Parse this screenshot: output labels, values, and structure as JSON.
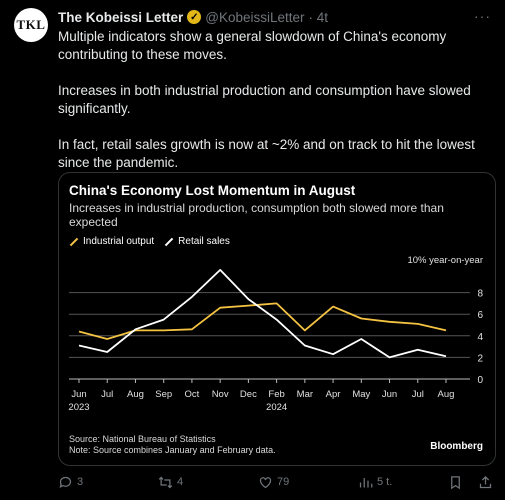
{
  "tweet": {
    "avatar_text": "TKL",
    "author_name": "The Kobeissi Letter",
    "handle": "@KobeissiLetter",
    "time": "· 4t",
    "paragraphs": [
      "Multiple indicators show a general slowdown of China's economy contributing to these moves.",
      "Increases in both industrial production and consumption have slowed significantly.",
      "In fact, retail sales growth is now at ~2% and on track to hit the lowest since the pandemic."
    ]
  },
  "card": {
    "source_line1": "Source: National Bureau of Statistics",
    "source_line2": "Note: Source combines January and February data.",
    "brand": "Bloomberg"
  },
  "chart_data": {
    "type": "line",
    "title": "China's Economy Lost Momentum in August",
    "subtitle": "Increases in industrial production, consumption both slowed more than expected",
    "unit_label": "10% year-on-year",
    "categories": [
      "Jun",
      "Jul",
      "Aug",
      "Sep",
      "Oct",
      "Nov",
      "Dec",
      "Feb",
      "Mar",
      "Apr",
      "May",
      "Jun",
      "Jul",
      "Aug"
    ],
    "x_tick_labels": [
      "Jun",
      "Jul",
      "Aug",
      "Sep",
      "Oct",
      "Nov",
      "Dec",
      "Feb",
      "Mar",
      "Apr",
      "May",
      "Jun",
      "Jul",
      "Aug"
    ],
    "year_labels": [
      {
        "index": 0,
        "label": "2023"
      },
      {
        "index": 7,
        "label": "2024"
      }
    ],
    "y_ticks": [
      "0",
      "2",
      "4",
      "6",
      "8"
    ],
    "ylim": [
      0,
      10
    ],
    "series": [
      {
        "name": "Industrial output",
        "color": "#f5c342",
        "values": [
          4.4,
          3.7,
          4.5,
          4.5,
          4.6,
          6.6,
          6.8,
          7.0,
          4.5,
          6.7,
          5.6,
          5.3,
          5.1,
          4.5
        ]
      },
      {
        "name": "Retail sales",
        "color": "#ffffff",
        "values": [
          3.1,
          2.5,
          4.6,
          5.5,
          7.6,
          10.1,
          7.4,
          5.5,
          3.1,
          2.3,
          3.7,
          2.0,
          2.7,
          2.1
        ]
      }
    ]
  },
  "actions": {
    "replies": "3",
    "reposts": "4",
    "likes": "79",
    "views": "5 t."
  }
}
